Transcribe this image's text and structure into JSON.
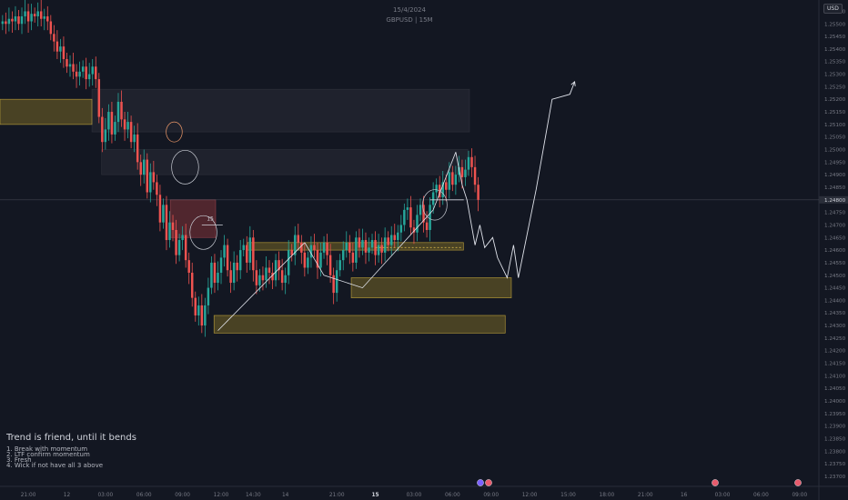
{
  "header": {
    "date": "15/4/2024",
    "symbol": "GBPUSD | 15M"
  },
  "currency": "USD",
  "notes": {
    "title": "Trend is friend, until it bends",
    "items": [
      "1. Break with momentum",
      "2. LTF confirm momentum",
      "3. Fresh",
      "4. Wick if not have all 3 above"
    ]
  },
  "box_label": "15",
  "colors": {
    "background": "#131722",
    "up": "#26a69a",
    "down": "#ef5350",
    "zone": "#b99a2a",
    "supply": "#9c3a3f",
    "grid_text": "#787b86"
  },
  "chart_data": {
    "type": "candlestick",
    "symbol": "GBPUSD",
    "timeframe": "15M",
    "y_ticks": [
      "1.25550",
      "1.25500",
      "1.25450",
      "1.25400",
      "1.25350",
      "1.25300",
      "1.25250",
      "1.25200",
      "1.25150",
      "1.25100",
      "1.25050",
      "1.25000",
      "1.24950",
      "1.24900",
      "1.24850",
      "1.24800",
      "1.24750",
      "1.24700",
      "1.24650",
      "1.24600",
      "1.24550",
      "1.24500",
      "1.24450",
      "1.24400",
      "1.24350",
      "1.24300",
      "1.24250",
      "1.24200",
      "1.24150",
      "1.24100",
      "1.24050",
      "1.24000",
      "1.23950",
      "1.23900",
      "1.23850",
      "1.23800",
      "1.23750",
      "1.23700"
    ],
    "ylim": [
      1.2366,
      1.25595
    ],
    "x_ticks": [
      {
        "label": "21:00",
        "t": -12,
        "bold": false
      },
      {
        "label": "12",
        "t": 0,
        "bold": false
      },
      {
        "label": "03:00",
        "t": 12,
        "bold": false
      },
      {
        "label": "06:00",
        "t": 24,
        "bold": false
      },
      {
        "label": "09:00",
        "t": 36,
        "bold": false
      },
      {
        "label": "12:00",
        "t": 48,
        "bold": false
      },
      {
        "label": "14:30",
        "t": 58,
        "bold": false
      },
      {
        "label": "14",
        "t": 68,
        "bold": false
      },
      {
        "label": "21:00",
        "t": 84,
        "bold": false
      },
      {
        "label": "15",
        "t": 96,
        "bold": true
      },
      {
        "label": "03:00",
        "t": 108,
        "bold": false
      },
      {
        "label": "06:00",
        "t": 120,
        "bold": false
      },
      {
        "label": "09:00",
        "t": 132,
        "bold": false
      },
      {
        "label": "12:00",
        "t": 144,
        "bold": false
      },
      {
        "label": "15:00",
        "t": 156,
        "bold": false
      },
      {
        "label": "18:00",
        "t": 168,
        "bold": false
      },
      {
        "label": "21:00",
        "t": 180,
        "bold": false
      },
      {
        "label": "16",
        "t": 192,
        "bold": false
      },
      {
        "label": "03:00",
        "t": 204,
        "bold": false
      },
      {
        "label": "06:00",
        "t": 216,
        "bold": false
      },
      {
        "label": "09:00",
        "t": 228,
        "bold": false
      }
    ],
    "xlim": [
      -20.8,
      234
    ],
    "current_price": 1.248,
    "closes": [
      1.2551,
      1.255,
      1.2552,
      1.2551,
      1.2553,
      1.255,
      1.2553,
      1.2555,
      1.2551,
      1.2554,
      1.2553,
      1.2555,
      1.2552,
      1.2553,
      1.2551,
      1.2546,
      1.2543,
      1.2539,
      1.2541,
      1.2536,
      1.2533,
      1.2534,
      1.2531,
      1.2529,
      1.2531,
      1.2533,
      1.2528,
      1.253,
      1.2533,
      1.2528,
      1.2513,
      1.2503,
      1.2508,
      1.2515,
      1.2506,
      1.2511,
      1.2519,
      1.2512,
      1.2508,
      1.2511,
      1.2503,
      1.2506,
      1.2495,
      1.249,
      1.2496,
      1.2483,
      1.2491,
      1.2487,
      1.2482,
      1.2471,
      1.2478,
      1.2464,
      1.2471,
      1.2468,
      1.2458,
      1.2464,
      1.2466,
      1.2456,
      1.2451,
      1.2441,
      1.2434,
      1.2438,
      1.243,
      1.2438,
      1.2445,
      1.2455,
      1.2447,
      1.2451,
      1.2457,
      1.2462,
      1.2452,
      1.2447,
      1.2455,
      1.2452,
      1.246,
      1.2462,
      1.2455,
      1.2465,
      1.2452,
      1.2446,
      1.245,
      1.2448,
      1.2453,
      1.2451,
      1.2448,
      1.2456,
      1.2452,
      1.2447,
      1.245,
      1.246,
      1.2458,
      1.2466,
      1.2463,
      1.2459,
      1.2453,
      1.2457,
      1.2462,
      1.246,
      1.2453,
      1.2459,
      1.2463,
      1.2458,
      1.245,
      1.2443,
      1.2452,
      1.2456,
      1.246,
      1.2463,
      1.2459,
      1.2455,
      1.2465,
      1.2461,
      1.2464,
      1.2459,
      1.2461,
      1.2464,
      1.2458,
      1.2462,
      1.2459,
      1.2465,
      1.2462,
      1.2466,
      1.2464,
      1.2467,
      1.247,
      1.2476,
      1.2477,
      1.2469,
      1.2467,
      1.2474,
      1.2478,
      1.2471,
      1.2468,
      1.2478,
      1.2483,
      1.2486,
      1.2481,
      1.2487,
      1.2484,
      1.2491,
      1.2486,
      1.249,
      1.2493,
      1.2489,
      1.2492,
      1.2497,
      1.2493,
      1.2486,
      1.248
    ],
    "zones": [
      {
        "kind": "demand",
        "t0": -20.8,
        "t1": 7.8,
        "y0": 1.251,
        "y1": 1.252
      },
      {
        "kind": "neutral",
        "t0": 7.8,
        "t1": 125.3,
        "y0": 1.2507,
        "y1": 1.2524
      },
      {
        "kind": "neutral",
        "t0": 10.8,
        "t1": 124.8,
        "y0": 1.249,
        "y1": 1.25
      },
      {
        "kind": "supply",
        "t0": 32.2,
        "t1": 46.3,
        "y0": 1.2465,
        "y1": 1.248
      },
      {
        "kind": "demand",
        "t0": 56.2,
        "t1": 123.4,
        "y0": 1.246,
        "y1": 1.2463
      },
      {
        "kind": "demand",
        "t0": 88.5,
        "t1": 138.3,
        "y0": 1.2441,
        "y1": 1.2449
      },
      {
        "kind": "demand",
        "t0": 45.8,
        "t1": 136.4,
        "y0": 1.2427,
        "y1": 1.2434
      }
    ],
    "lines": [
      {
        "kind": "trend",
        "points": [
          [
            47,
            1.2428
          ],
          [
            74,
            1.2463
          ]
        ]
      },
      {
        "kind": "trend",
        "points": [
          [
            74,
            1.2463
          ],
          [
            80,
            1.245
          ],
          [
            92,
            1.2445
          ],
          [
            114,
            1.2476
          ],
          [
            121,
            1.2499
          ]
        ]
      },
      {
        "kind": "projection",
        "points": [
          [
            121,
            1.2499
          ],
          [
            123,
            1.2486
          ],
          [
            124.5,
            1.248
          ],
          [
            127,
            1.2462
          ],
          [
            128.5,
            1.247
          ],
          [
            130,
            1.2461
          ],
          [
            132.5,
            1.2465
          ],
          [
            134,
            1.2457
          ],
          [
            137,
            1.2449
          ],
          [
            139,
            1.2462
          ],
          [
            140.5,
            1.2449
          ],
          [
            146,
            1.2484
          ],
          [
            151,
            1.252
          ],
          [
            156.5,
            1.2522
          ],
          [
            158,
            1.2527
          ]
        ]
      },
      {
        "kind": "level",
        "points": [
          [
            113,
            1.248
          ],
          [
            123.5,
            1.248
          ]
        ]
      },
      {
        "kind": "level",
        "points": [
          [
            42,
            1.247
          ],
          [
            48.5,
            1.247
          ]
        ]
      },
      {
        "kind": "dashed",
        "points": [
          [
            96,
            1.2461
          ],
          [
            123,
            1.2461
          ]
        ]
      }
    ],
    "circles": [
      {
        "t": 33.4,
        "y": 1.2507,
        "r": 2.5
      },
      {
        "t": 36.8,
        "y": 1.2493,
        "r": 4.2
      },
      {
        "t": 42.5,
        "y": 1.2467,
        "r": 4.2
      },
      {
        "t": 114.5,
        "y": 1.2478,
        "r": 3.8
      }
    ]
  }
}
